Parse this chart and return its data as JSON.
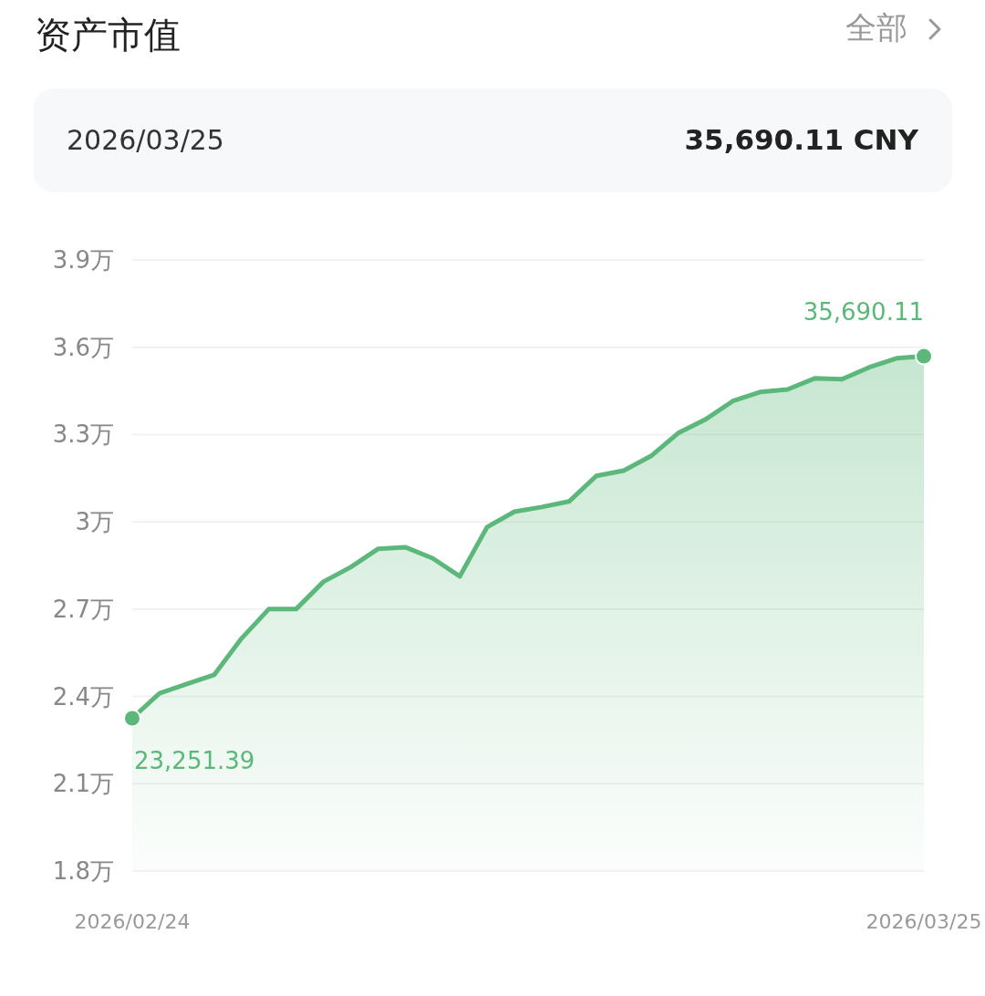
{
  "chart_data": {
    "type": "area",
    "title": "资产市值",
    "x": [
      "2026-02-24",
      "2026-02-25",
      "2026-02-26",
      "2026-02-27",
      "2026-02-28",
      "2026-03-01",
      "2026-03-02",
      "2026-03-03",
      "2026-03-04",
      "2026-03-05",
      "2026-03-06",
      "2026-03-07",
      "2026-03-08",
      "2026-03-09",
      "2026-03-10",
      "2026-03-11",
      "2026-03-12",
      "2026-03-13",
      "2026-03-14",
      "2026-03-15",
      "2026-03-16",
      "2026-03-17",
      "2026-03-18",
      "2026-03-19",
      "2026-03-20",
      "2026-03-21",
      "2026-03-22",
      "2026-03-23",
      "2026-03-24",
      "2026-03-25"
    ],
    "series": [
      {
        "color": "#5cb87a",
        "values": [
          2.325,
          2.411,
          2.443,
          2.474,
          2.599,
          2.7,
          2.7,
          2.794,
          2.844,
          2.907,
          2.913,
          2.875,
          2.813,
          2.982,
          3.035,
          3.051,
          3.07,
          3.158,
          3.176,
          3.226,
          3.305,
          3.352,
          3.415,
          3.446,
          3.455,
          3.493,
          3.49,
          3.531,
          3.562,
          3.569
        ]
      }
    ],
    "xlim": [
      "2026-02-24",
      "2026-03-25"
    ],
    "xticks": [
      {
        "value": "2026-02-24",
        "label": "2026/02/24"
      },
      {
        "value": "2026-03-25",
        "label": "2026/03/25"
      }
    ],
    "ylim": [
      1.8,
      3.9
    ],
    "yticks": [
      {
        "value": 1.8,
        "label": "1.8万"
      },
      {
        "value": 2.1,
        "label": "2.1万"
      },
      {
        "value": 2.4,
        "label": "2.4万"
      },
      {
        "value": 2.7,
        "label": "2.7万"
      },
      {
        "value": 3,
        "label": "3万"
      },
      {
        "value": 3.3,
        "label": "3.3万"
      },
      {
        "value": 3.6,
        "label": "3.6万"
      },
      {
        "value": 3.9,
        "label": "3.9万"
      }
    ],
    "grid": "y",
    "annotations": [
      {
        "text": "23,251.39",
        "x": "2026-02-24",
        "y": 2.325
      },
      {
        "text": "35,690.11",
        "x": "2026-03-25",
        "y": 3.569
      },
      "全部",
      "2026/03/25",
      "35,690.11 CNY"
    ]
  }
}
